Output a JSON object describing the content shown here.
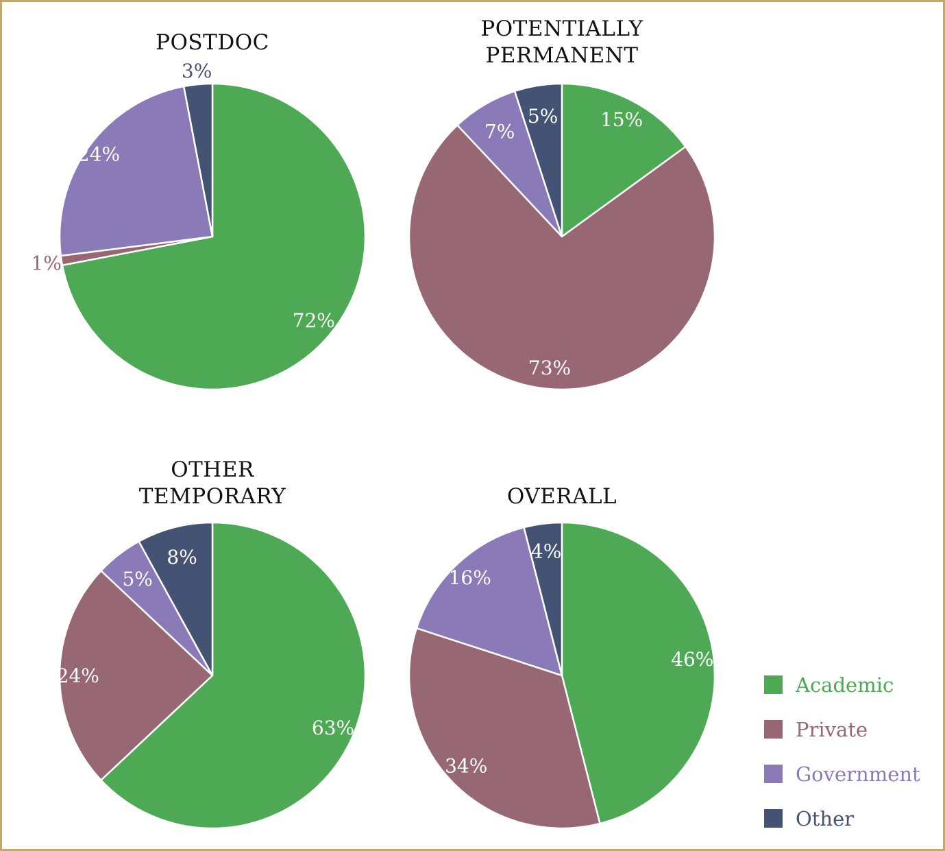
{
  "chart_data": [
    {
      "type": "pie",
      "title": [
        "POSTDOC"
      ],
      "slices": [
        {
          "name": "Academic",
          "value": 72,
          "label": "72%"
        },
        {
          "name": "Private",
          "value": 1,
          "label": "1%"
        },
        {
          "name": "Government",
          "value": 24,
          "label": "24%"
        },
        {
          "name": "Other",
          "value": 3,
          "label": "3%"
        }
      ]
    },
    {
      "type": "pie",
      "title": [
        "POTENTIALLY",
        "PERMANENT"
      ],
      "slices": [
        {
          "name": "Academic",
          "value": 15,
          "label": "15%"
        },
        {
          "name": "Private",
          "value": 73,
          "label": "73%"
        },
        {
          "name": "Government",
          "value": 7,
          "label": "7%"
        },
        {
          "name": "Other",
          "value": 5,
          "label": "5%"
        }
      ]
    },
    {
      "type": "pie",
      "title": [
        "OTHER",
        "TEMPORARY"
      ],
      "slices": [
        {
          "name": "Academic",
          "value": 63,
          "label": "63%"
        },
        {
          "name": "Private",
          "value": 24,
          "label": "24%"
        },
        {
          "name": "Government",
          "value": 5,
          "label": "5%"
        },
        {
          "name": "Other",
          "value": 8,
          "label": "8%"
        }
      ]
    },
    {
      "type": "pie",
      "title": [
        "OVERALL"
      ],
      "slices": [
        {
          "name": "Academic",
          "value": 46,
          "label": "46%"
        },
        {
          "name": "Private",
          "value": 34,
          "label": "34%"
        },
        {
          "name": "Government",
          "value": 16,
          "label": "16%"
        },
        {
          "name": "Other",
          "value": 4,
          "label": "4%"
        }
      ]
    }
  ],
  "legend": {
    "position": "bottom-right",
    "items": [
      {
        "name": "Academic",
        "color": "#4ea954"
      },
      {
        "name": "Private",
        "color": "#986774"
      },
      {
        "name": "Government",
        "color": "#8a7ab8"
      },
      {
        "name": "Other",
        "color": "#445374"
      }
    ]
  }
}
